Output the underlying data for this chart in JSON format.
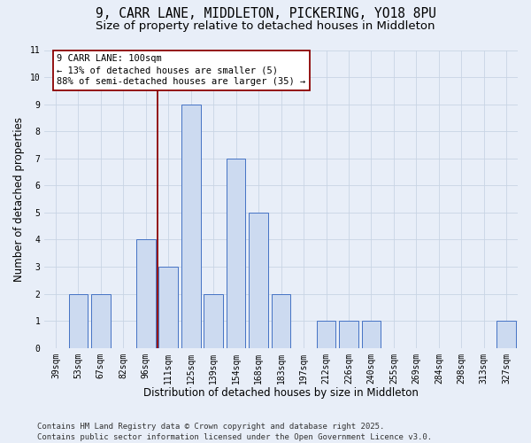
{
  "title_line1": "9, CARR LANE, MIDDLETON, PICKERING, YO18 8PU",
  "title_line2": "Size of property relative to detached houses in Middleton",
  "xlabel": "Distribution of detached houses by size in Middleton",
  "ylabel": "Number of detached properties",
  "categories": [
    "39sqm",
    "53sqm",
    "67sqm",
    "82sqm",
    "96sqm",
    "111sqm",
    "125sqm",
    "139sqm",
    "154sqm",
    "168sqm",
    "183sqm",
    "197sqm",
    "212sqm",
    "226sqm",
    "240sqm",
    "255sqm",
    "269sqm",
    "284sqm",
    "298sqm",
    "313sqm",
    "327sqm"
  ],
  "values": [
    0,
    2,
    2,
    0,
    4,
    3,
    9,
    2,
    7,
    5,
    2,
    0,
    1,
    1,
    1,
    0,
    0,
    0,
    0,
    0,
    1
  ],
  "bar_color": "#ccdaf0",
  "bar_edge_color": "#4472c4",
  "reference_line_color": "#8b0000",
  "reference_line_x": 4.5,
  "annotation_line1": "9 CARR LANE: 100sqm",
  "annotation_line2": "← 13% of detached houses are smaller (5)",
  "annotation_line3": "88% of semi-detached houses are larger (35) →",
  "annotation_box_facecolor": "#ffffff",
  "annotation_box_edgecolor": "#8b0000",
  "ylim_max": 11,
  "yticks": [
    0,
    1,
    2,
    3,
    4,
    5,
    6,
    7,
    8,
    9,
    10,
    11
  ],
  "grid_color": "#c8d4e4",
  "background_color": "#e8eef8",
  "footer_line1": "Contains HM Land Registry data © Crown copyright and database right 2025.",
  "footer_line2": "Contains public sector information licensed under the Open Government Licence v3.0.",
  "title_fontsize": 10.5,
  "subtitle_fontsize": 9.5,
  "axis_label_fontsize": 8.5,
  "tick_fontsize": 7,
  "annotation_fontsize": 7.5,
  "footer_fontsize": 6.5
}
